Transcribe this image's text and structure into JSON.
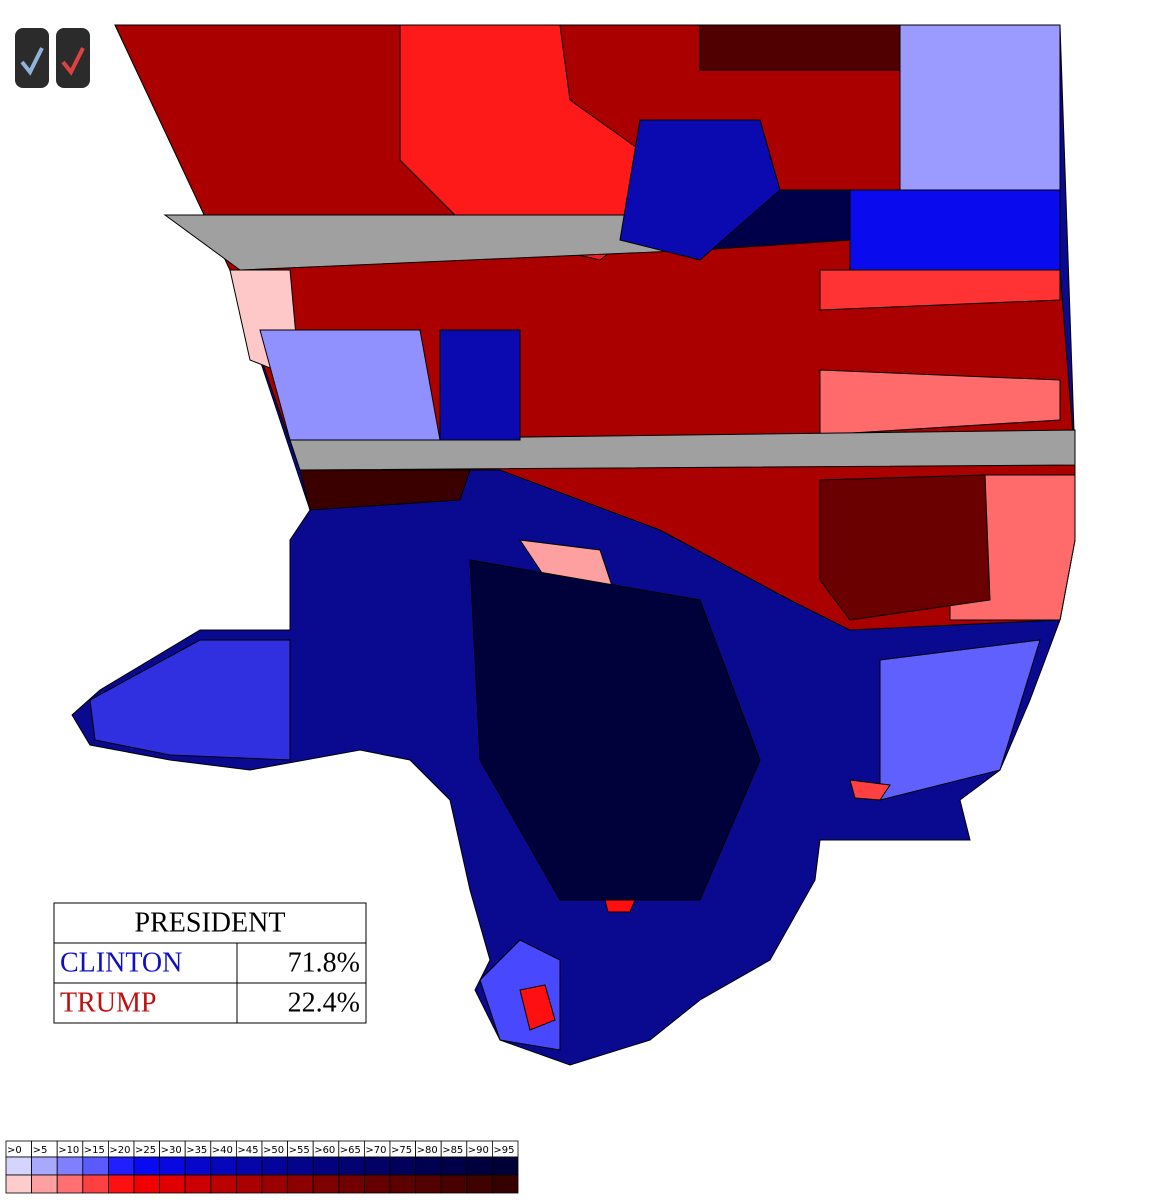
{
  "results": {
    "title": "PRESIDENT",
    "rows": [
      {
        "name": "CLINTON",
        "share": "71.8%",
        "color": "#1010c0"
      },
      {
        "name": "TRUMP",
        "share": "22.4%",
        "color": "#c01010"
      }
    ]
  },
  "legend": {
    "labels": [
      ">0",
      ">5",
      ">10",
      ">15",
      ">20",
      ">25",
      ">30",
      ">35",
      ">40",
      ">45",
      ">50",
      ">55",
      ">60",
      ">65",
      ">70",
      ">75",
      ">80",
      ">85",
      ">90",
      ">95"
    ],
    "blue": [
      "#d4d4ff",
      "#a8a8ff",
      "#8080ff",
      "#5a5aff",
      "#2020ff",
      "#0a0af0",
      "#0808e0",
      "#0707cc",
      "#0606bb",
      "#0505aa",
      "#04049a",
      "#03038c",
      "#02027e",
      "#020272",
      "#010166",
      "#01015c",
      "#000052",
      "#000048",
      "#00003f",
      "#000036"
    ],
    "red": [
      "#ffcccc",
      "#ffa0a0",
      "#ff7070",
      "#ff4040",
      "#ff1010",
      "#f00000",
      "#e00000",
      "#cc0000",
      "#bb0000",
      "#aa0000",
      "#9a0000",
      "#8c0000",
      "#7e0000",
      "#720000",
      "#660000",
      "#5c0000",
      "#520000",
      "#480000",
      "#3f0000",
      "#360000"
    ]
  }
}
